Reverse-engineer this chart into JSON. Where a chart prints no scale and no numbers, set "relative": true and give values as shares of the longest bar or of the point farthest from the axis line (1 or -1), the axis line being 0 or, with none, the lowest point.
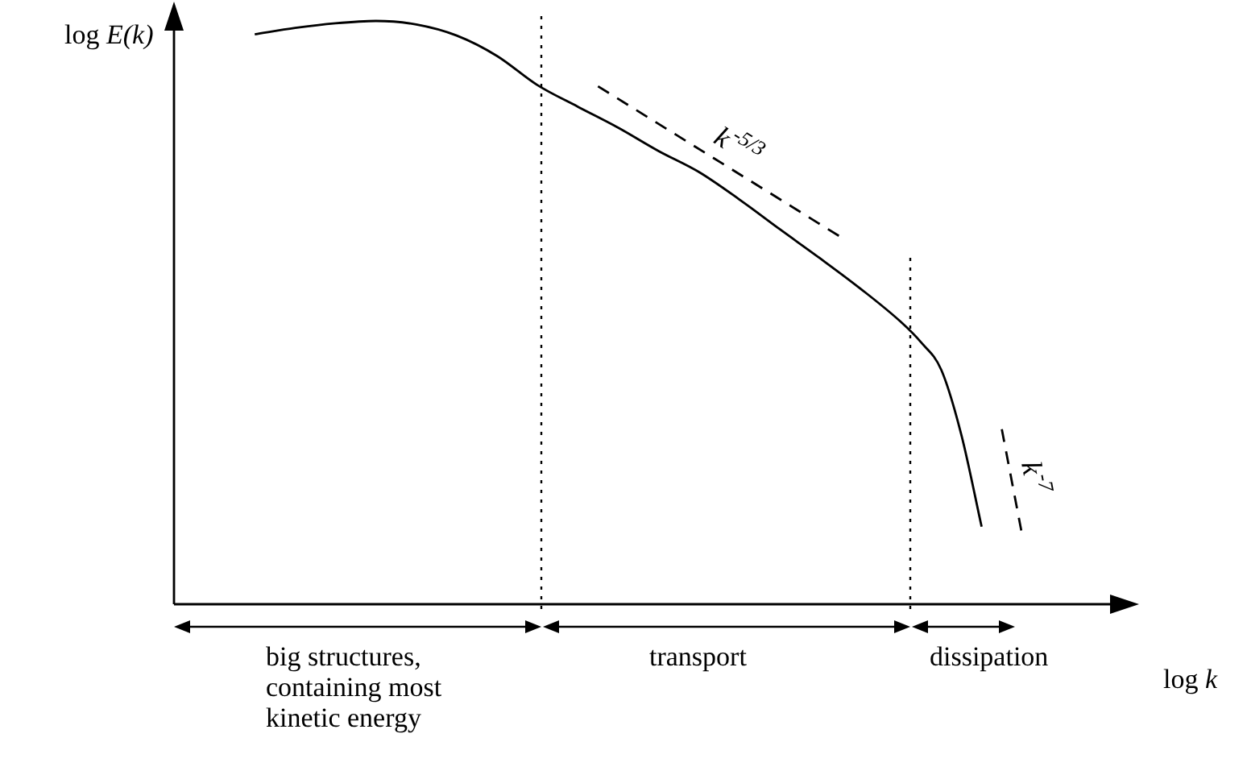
{
  "chart_data": {
    "type": "line",
    "relative": true,
    "xlabel": "log k",
    "ylabel": "log E(k)",
    "marker": "none",
    "categories": [
      null,
      null,
      null,
      null,
      null,
      null,
      null,
      null,
      null,
      null,
      null,
      null,
      null,
      null,
      null,
      null,
      null,
      null,
      null,
      null,
      null,
      null,
      null,
      null,
      null,
      null,
      null,
      null,
      null,
      null,
      null,
      null,
      null,
      null,
      null,
      null,
      null,
      null,
      null,
      null,
      null,
      null,
      null,
      null,
      null,
      null,
      null,
      null
    ],
    "series": [
      {
        "color": "#000000",
        "line_style": "solid",
        "values": [
          null,
          null,
          null,
          null,
          0.977,
          null,
          0.988,
          null,
          0.996,
          null,
          1,
          null,
          0.994,
          null,
          0.975,
          null,
          0.94,
          null,
          0.89,
          null,
          0.853,
          null,
          0.817,
          null,
          0.777,
          null,
          0.741,
          null,
          0.694,
          null,
          0.643,
          null,
          0.593,
          null,
          0.541,
          null,
          0.484,
          0.449,
          0.402,
          0.29,
          0.133,
          null,
          null,
          null,
          null,
          null,
          null,
          null
        ]
      },
      {
        "name": "k$^{-5/3}$",
        "color": "#000000",
        "line_style": "dashed",
        "values": [
          null,
          null,
          null,
          null,
          null,
          null,
          null,
          null,
          null,
          null,
          null,
          null,
          null,
          null,
          null,
          null,
          null,
          null,
          null,
          null,
          null,
          0.888,
          null,
          null,
          null,
          null,
          null,
          null,
          null,
          null,
          null,
          null,
          null,
          0.63,
          null,
          null,
          null,
          null,
          null,
          null,
          null,
          null,
          null,
          null,
          null,
          null,
          null,
          null
        ]
      },
      {
        "name": "k$^{-7}$",
        "color": "#000000",
        "line_style": "dashed",
        "values": [
          null,
          null,
          null,
          null,
          null,
          null,
          null,
          null,
          null,
          null,
          null,
          null,
          null,
          null,
          null,
          null,
          null,
          null,
          null,
          null,
          null,
          null,
          null,
          null,
          null,
          null,
          null,
          null,
          null,
          null,
          null,
          null,
          null,
          null,
          null,
          null,
          null,
          null,
          null,
          null,
          null,
          0.3,
          0.12,
          null,
          null,
          null,
          null,
          null
        ]
      }
    ],
    "annotations": [
      "big structures,\ncontaining most\nkinetic energy",
      "transport",
      "dissipation"
    ]
  }
}
